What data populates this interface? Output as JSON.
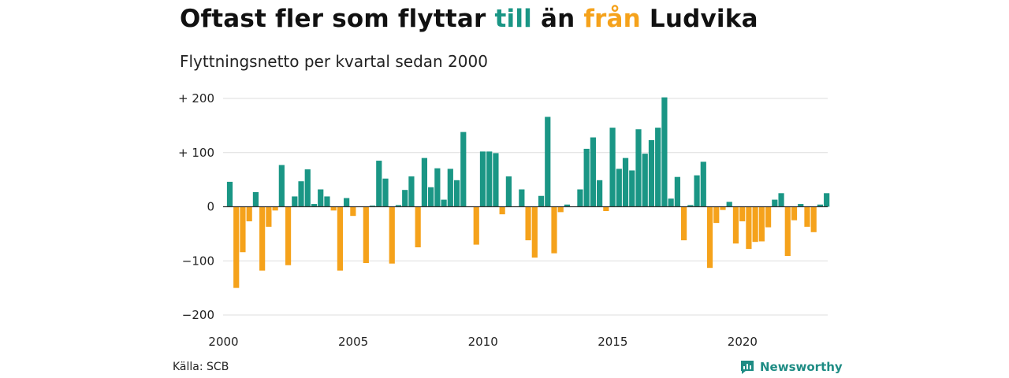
{
  "title": {
    "part1": "Oftast fler som flyttar ",
    "word_in": "till",
    "part2": " än ",
    "word_out": "från",
    "part3": " Ludvika"
  },
  "subtitle": "Flyttningsnetto per kvartal sedan 2000",
  "source": "Källa: SCB",
  "brand": {
    "name": "Newsworthy",
    "icon": "newsworthy-logo-icon"
  },
  "colors": {
    "positive": "#1a9685",
    "negative": "#f5a21b",
    "grid": "#dddddd",
    "zero": "#333333"
  },
  "chart_data": {
    "type": "bar",
    "title": "Oftast fler som flyttar till än från Ludvika",
    "subtitle": "Flyttningsnetto per kvartal sedan 2000",
    "xlabel": "",
    "ylabel": "",
    "ylim": [
      -200,
      200
    ],
    "y_ticks": [
      200,
      100,
      0,
      -100,
      -200
    ],
    "y_tick_labels": [
      "+ 200",
      "+ 100",
      "0",
      "−100",
      "−200"
    ],
    "x_ticks": [
      "2000",
      "2005",
      "2010",
      "2015",
      "2020"
    ],
    "x_tick_years": [
      2000,
      2005,
      2010,
      2015,
      2020
    ],
    "start": "2000 Q1",
    "grid": true,
    "legend": "none",
    "values": [
      46,
      -150,
      -84,
      -27,
      27,
      -118,
      -37,
      -7,
      77,
      -108,
      19,
      47,
      69,
      5,
      32,
      19,
      -7,
      -118,
      16,
      -17,
      0,
      -104,
      2,
      85,
      52,
      -105,
      3,
      31,
      56,
      -75,
      90,
      36,
      71,
      13,
      70,
      49,
      138,
      0,
      -70,
      102,
      102,
      99,
      -14,
      56,
      0,
      32,
      -62,
      -94,
      20,
      166,
      -86,
      -10,
      4,
      0,
      32,
      107,
      128,
      49,
      -8,
      146,
      70,
      90,
      67,
      143,
      98,
      123,
      146,
      202,
      15,
      55,
      -62,
      3,
      58,
      83,
      -113,
      -30,
      -6,
      9,
      -68,
      -27,
      -78,
      -65,
      -64,
      -38,
      13,
      25,
      -91,
      -25,
      5,
      -37,
      -47,
      4,
      25
    ]
  }
}
